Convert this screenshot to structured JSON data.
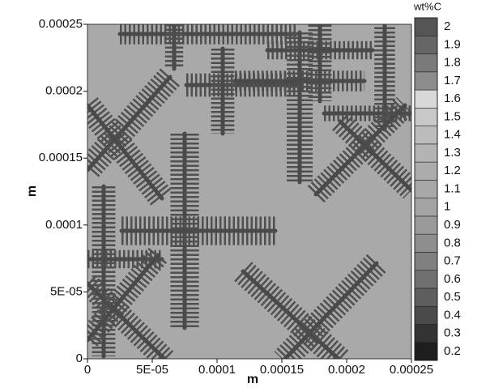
{
  "chart_data": {
    "type": "contour",
    "xlabel": "m",
    "ylabel": "m",
    "xlim": [
      0,
      0.00025
    ],
    "ylim": [
      0,
      0.00025
    ],
    "xticks": [
      0,
      {
        "value": 5e-05,
        "label": "5E-05"
      },
      0.0001,
      0.00015,
      0.0002,
      0.00025
    ],
    "yticks": [
      0,
      {
        "value": 5e-05,
        "label": "5E-05"
      },
      0.0001,
      0.00015,
      0.0002,
      0.00025
    ],
    "colorbar": {
      "title": "wt%C",
      "lim": [
        0.15,
        2.05
      ],
      "ticks": [
        0.2,
        0.3,
        0.4,
        0.5,
        0.6,
        0.7,
        0.8,
        0.9,
        1,
        1.1,
        1.2,
        1.3,
        1.4,
        1.5,
        1.6,
        1.7,
        1.8,
        1.9,
        2
      ],
      "colors": [
        "#1e1e1e",
        "#333333",
        "#4a4a4a",
        "#5e5e5e",
        "#707070",
        "#808080",
        "#8e8e8e",
        "#9a9a9a",
        "#a4a4a4",
        "#a8a8a8",
        "#acacac",
        "#b4b4b4",
        "#bcbcbc",
        "#c8c8c8",
        "#d8d8d8",
        "#8c8c8c",
        "#7a7a7a",
        "#666666",
        "#555555"
      ]
    }
  }
}
